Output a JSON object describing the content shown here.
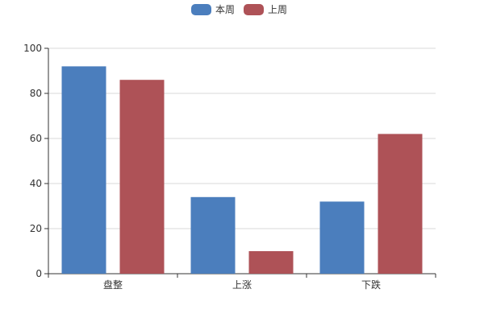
{
  "chart_data": {
    "type": "bar",
    "categories": [
      "盘整",
      "上涨",
      "下跌"
    ],
    "series": [
      {
        "name": "本周",
        "values": [
          92,
          34,
          32
        ],
        "color": "#4b7ebd"
      },
      {
        "name": "上周",
        "values": [
          86,
          10,
          62
        ],
        "color": "#ae5257"
      }
    ],
    "ylim": [
      0,
      100
    ],
    "yticks": [
      0,
      20,
      40,
      60,
      80,
      100
    ],
    "grid": true,
    "legend_position": "top-center"
  }
}
